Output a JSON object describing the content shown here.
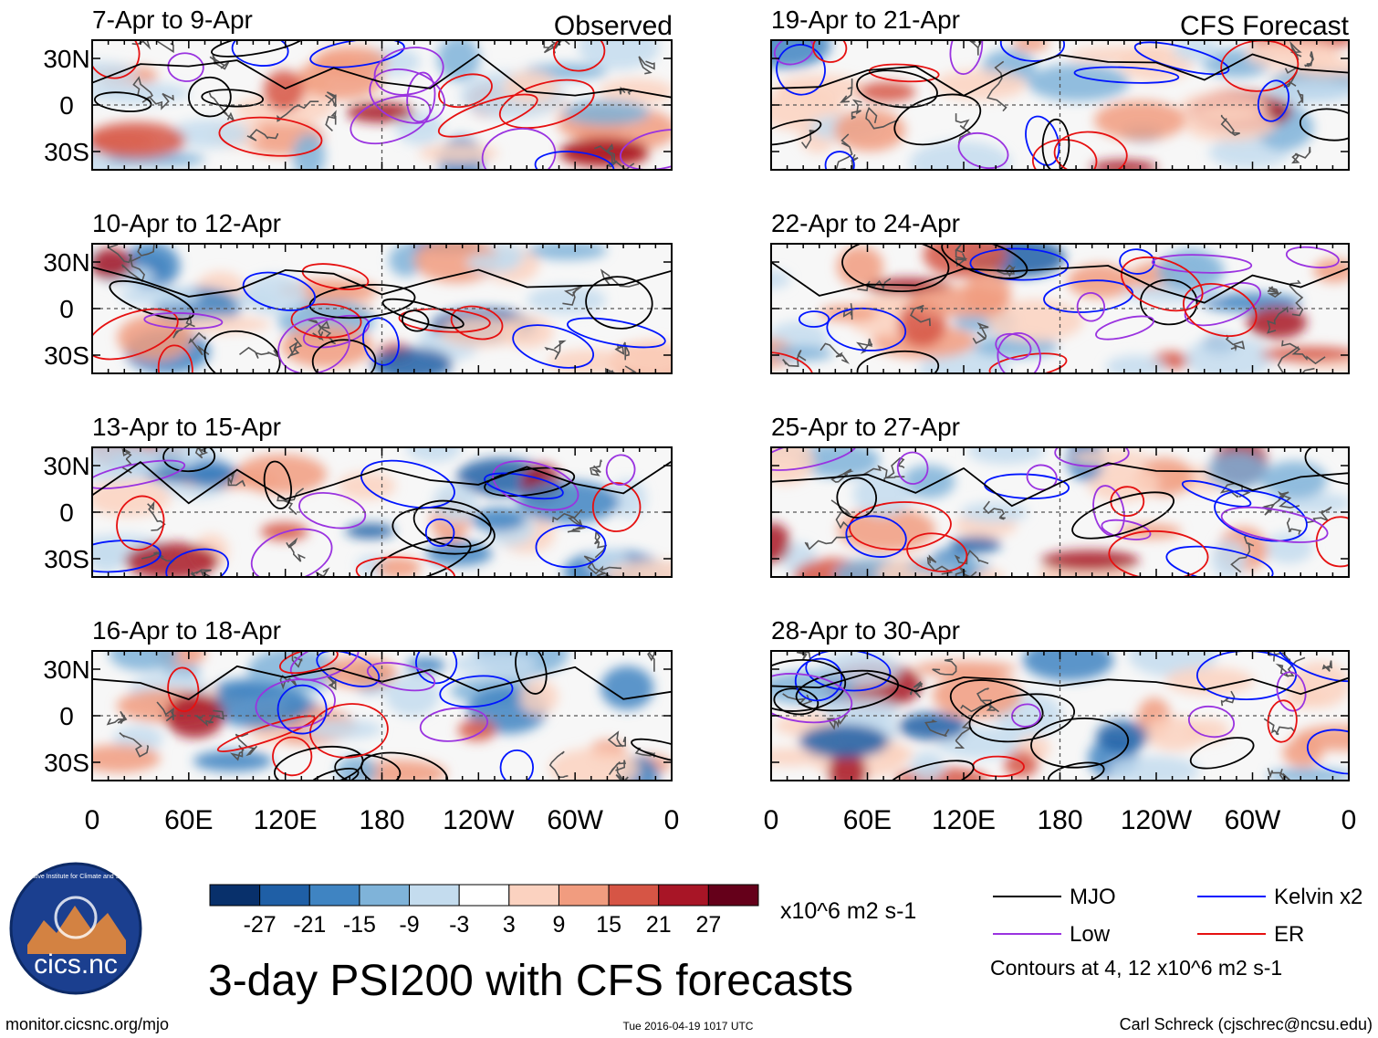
{
  "header": {
    "left_label": "Observed",
    "right_label": "CFS Forecast"
  },
  "chart_data": {
    "type": "heatmap",
    "title": "3-day PSI200 with CFS forecasts",
    "variable": "PSI200",
    "units": "x10^6 m2 s-1",
    "x_ticks": [
      "0",
      "60E",
      "120E",
      "180",
      "120W",
      "60W",
      "0"
    ],
    "y_ticks": [
      "30N",
      "0",
      "30S"
    ],
    "x_range_deg": [
      0,
      360
    ],
    "y_range_deg": [
      -40,
      40
    ],
    "observed_panels": [
      {
        "period": "7-Apr to 9-Apr"
      },
      {
        "period": "10-Apr to 12-Apr"
      },
      {
        "period": "13-Apr to 15-Apr"
      },
      {
        "period": "16-Apr to 18-Apr"
      }
    ],
    "forecast_panels": [
      {
        "period": "19-Apr to 21-Apr"
      },
      {
        "period": "22-Apr to 24-Apr"
      },
      {
        "period": "25-Apr to 27-Apr"
      },
      {
        "period": "28-Apr to 30-Apr"
      }
    ],
    "colorbar": {
      "labels": [
        "-27",
        "-21",
        "-15",
        "-9",
        "-3",
        "3",
        "9",
        "15",
        "21",
        "27"
      ],
      "colors": [
        "#08306b",
        "#1f5fa6",
        "#3f84c2",
        "#7fb3d9",
        "#c4dcee",
        "#ffffff",
        "#fbd2c0",
        "#f19c7f",
        "#d65545",
        "#a81526",
        "#65001a"
      ]
    },
    "legend": [
      {
        "name": "MJO",
        "color": "#000000"
      },
      {
        "name": "Kelvin x2",
        "color": "#0015ff"
      },
      {
        "name": "Low",
        "color": "#9a33e0"
      },
      {
        "name": "ER",
        "color": "#e61010"
      }
    ],
    "contour_note": "Contours at 4, 12 x10^6 m2 s-1"
  },
  "footer": {
    "logo_text": "cics.nc",
    "logo_ring_text": "Cooperative Institute for Climate and Satellites",
    "site": "monitor.cicsnc.org/mjo",
    "timestamp": "Tue 2016-04-19 1017 UTC",
    "author": "Carl Schreck (cjschrec@ncsu.edu)"
  }
}
